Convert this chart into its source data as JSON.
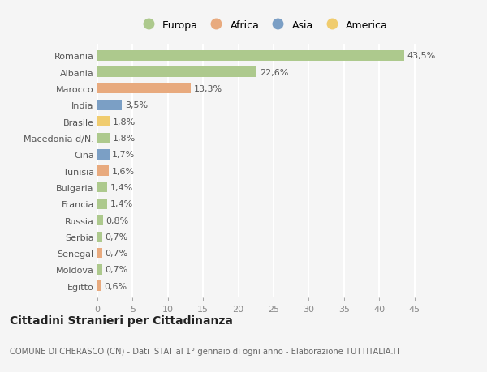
{
  "countries": [
    "Romania",
    "Albania",
    "Marocco",
    "India",
    "Brasile",
    "Macedonia d/N.",
    "Cina",
    "Tunisia",
    "Bulgaria",
    "Francia",
    "Russia",
    "Serbia",
    "Senegal",
    "Moldova",
    "Egitto"
  ],
  "values": [
    43.5,
    22.6,
    13.3,
    3.5,
    1.8,
    1.8,
    1.7,
    1.6,
    1.4,
    1.4,
    0.8,
    0.7,
    0.7,
    0.7,
    0.6
  ],
  "labels": [
    "43,5%",
    "22,6%",
    "13,3%",
    "3,5%",
    "1,8%",
    "1,8%",
    "1,7%",
    "1,6%",
    "1,4%",
    "1,4%",
    "0,8%",
    "0,7%",
    "0,7%",
    "0,7%",
    "0,6%"
  ],
  "continents": [
    "Europa",
    "Europa",
    "Africa",
    "Asia",
    "America",
    "Europa",
    "Asia",
    "Africa",
    "Europa",
    "Europa",
    "Europa",
    "Europa",
    "Africa",
    "Europa",
    "Africa"
  ],
  "continent_colors": {
    "Europa": "#adc98d",
    "Africa": "#e8aa7e",
    "Asia": "#7b9fc5",
    "America": "#f0cc6e"
  },
  "legend_order": [
    "Europa",
    "Africa",
    "Asia",
    "America"
  ],
  "legend_colors": [
    "#adc98d",
    "#e8aa7e",
    "#7b9fc5",
    "#f0cc6e"
  ],
  "xlim": [
    0,
    47
  ],
  "xticks": [
    0,
    5,
    10,
    15,
    20,
    25,
    30,
    35,
    40,
    45
  ],
  "background_color": "#f5f5f5",
  "grid_color": "#ffffff",
  "title_main": "Cittadini Stranieri per Cittadinanza",
  "title_sub": "COMUNE DI CHERASCO (CN) - Dati ISTAT al 1° gennaio di ogni anno - Elaborazione TUTTITALIA.IT",
  "label_fontsize": 8.0,
  "tick_fontsize": 8.0,
  "bar_height": 0.62
}
